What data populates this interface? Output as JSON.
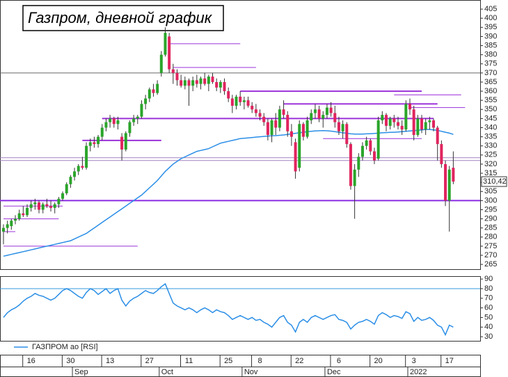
{
  "chart_data": [
    {
      "type": "candlestick",
      "title": "Газпром, дневной график",
      "categories": [
        null,
        null,
        null,
        null,
        null,
        null,
        null,
        "16",
        null,
        null,
        null,
        null,
        null,
        null,
        null,
        null,
        null,
        "30",
        null,
        null,
        null,
        null,
        null,
        null,
        null,
        null,
        null,
        "13",
        null,
        null,
        null,
        null,
        null,
        null,
        null,
        null,
        null,
        "27",
        null,
        null,
        null,
        null,
        null,
        null,
        null,
        null,
        null,
        "11",
        null,
        null,
        null,
        null,
        null,
        null,
        null,
        null,
        null,
        "25",
        null,
        null,
        null,
        null,
        null,
        null,
        null,
        "8",
        null,
        null,
        null,
        null,
        null,
        null,
        null,
        null,
        null,
        "22",
        null,
        null,
        null,
        null,
        null,
        null,
        null,
        null,
        null,
        "6",
        null,
        null,
        null,
        null,
        null,
        null,
        null,
        null,
        null,
        "20",
        null,
        null,
        null,
        null,
        null,
        null,
        null,
        null,
        "3",
        null,
        null,
        null,
        null,
        null,
        null,
        null,
        null,
        "17",
        null
      ],
      "month_categories": [
        null,
        null,
        null,
        null,
        null,
        null,
        null,
        null,
        null,
        null,
        null,
        null,
        null,
        null,
        null,
        null,
        null,
        null,
        "Sep",
        null,
        null,
        null,
        null,
        null,
        null,
        null,
        null,
        null,
        null,
        null,
        null,
        null,
        null,
        null,
        null,
        null,
        null,
        null,
        null,
        null,
        "Oct",
        null,
        null,
        null,
        null,
        null,
        null,
        null,
        null,
        null,
        null,
        null,
        null,
        null,
        null,
        null,
        null,
        null,
        null,
        null,
        null,
        "Nov",
        null,
        null,
        null,
        null,
        null,
        null,
        null,
        null,
        null,
        null,
        null,
        null,
        null,
        null,
        null,
        null,
        null,
        null,
        null,
        null,
        "Dec",
        null,
        null,
        null,
        null,
        null,
        null,
        null,
        null,
        null,
        null,
        null,
        null,
        null,
        null,
        null,
        null,
        null,
        null,
        null,
        null,
        "2022",
        null,
        null,
        null,
        null,
        null,
        null,
        null,
        null,
        null,
        null,
        null
      ],
      "ohlc": [
        [
          283,
          287,
          276,
          285
        ],
        [
          285,
          289,
          282,
          287
        ],
        [
          286,
          290,
          284,
          289
        ],
        [
          289,
          292,
          287,
          290
        ],
        [
          290,
          295,
          289,
          293
        ],
        [
          293,
          297,
          291,
          292
        ],
        [
          292,
          298,
          291,
          296
        ],
        [
          296,
          300,
          294,
          298
        ],
        [
          298,
          301,
          295,
          299
        ],
        [
          299,
          300,
          293,
          295
        ],
        [
          295,
          299,
          293,
          298
        ],
        [
          298,
          301,
          296,
          297
        ],
        [
          297,
          300,
          294,
          296
        ],
        [
          296,
          299,
          293,
          298
        ],
        [
          298,
          302,
          296,
          301
        ],
        [
          301,
          305,
          300,
          304
        ],
        [
          304,
          310,
          303,
          309
        ],
        [
          309,
          314,
          307,
          313
        ],
        [
          313,
          318,
          311,
          316
        ],
        [
          316,
          320,
          314,
          319
        ],
        [
          319,
          324,
          317,
          318
        ],
        [
          318,
          332,
          317,
          330
        ],
        [
          330,
          334,
          327,
          332
        ],
        [
          332,
          335,
          329,
          331
        ],
        [
          331,
          336,
          329,
          335
        ],
        [
          335,
          342,
          333,
          340
        ],
        [
          340,
          345,
          338,
          343
        ],
        [
          343,
          347,
          340,
          345
        ],
        [
          345,
          346,
          340,
          342
        ],
        [
          342,
          346,
          339,
          344
        ],
        [
          335,
          337,
          322,
          328
        ],
        [
          328,
          338,
          327,
          337
        ],
        [
          337,
          344,
          335,
          343
        ],
        [
          343,
          347,
          341,
          345
        ],
        [
          345,
          347,
          342,
          346
        ],
        [
          346,
          355,
          345,
          353
        ],
        [
          353,
          358,
          350,
          356
        ],
        [
          356,
          362,
          354,
          361
        ],
        [
          361,
          364,
          357,
          359
        ],
        [
          359,
          366,
          358,
          364
        ],
        [
          370,
          382,
          368,
          380
        ],
        [
          380,
          395,
          379,
          392
        ],
        [
          390,
          392,
          370,
          372
        ],
        [
          372,
          375,
          364,
          370
        ],
        [
          370,
          372,
          363,
          366
        ],
        [
          366,
          369,
          362,
          363
        ],
        [
          363,
          368,
          361,
          366
        ],
        [
          366,
          367,
          352,
          363
        ],
        [
          363,
          368,
          360,
          366
        ],
        [
          366,
          369,
          362,
          364
        ],
        [
          364,
          368,
          361,
          367
        ],
        [
          367,
          370,
          363,
          364
        ],
        [
          364,
          369,
          360,
          368
        ],
        [
          368,
          370,
          364,
          365
        ],
        [
          365,
          367,
          360,
          362
        ],
        [
          362,
          366,
          359,
          365
        ],
        [
          365,
          367,
          358,
          360
        ],
        [
          360,
          362,
          354,
          356
        ],
        [
          356,
          358,
          348,
          352
        ],
        [
          352,
          358,
          350,
          357
        ],
        [
          357,
          360,
          352,
          354
        ],
        [
          354,
          357,
          350,
          355
        ],
        [
          355,
          357,
          351,
          352
        ],
        [
          352,
          354,
          348,
          350
        ],
        [
          350,
          353,
          346,
          348
        ],
        [
          348,
          350,
          344,
          346
        ],
        [
          346,
          348,
          341,
          343
        ],
        [
          343,
          345,
          333,
          336
        ],
        [
          336,
          345,
          332,
          344
        ],
        [
          344,
          348,
          336,
          340
        ],
        [
          340,
          352,
          338,
          350
        ],
        [
          350,
          355,
          345,
          347
        ],
        [
          347,
          349,
          335,
          338
        ],
        [
          338,
          342,
          330,
          335
        ],
        [
          332,
          334,
          312,
          316
        ],
        [
          318,
          344,
          316,
          342
        ],
        [
          342,
          343,
          333,
          335
        ],
        [
          335,
          346,
          334,
          344
        ],
        [
          344,
          350,
          342,
          348
        ],
        [
          348,
          353,
          345,
          350
        ],
        [
          350,
          352,
          343,
          345
        ],
        [
          345,
          349,
          340,
          347
        ],
        [
          347,
          353,
          345,
          351
        ],
        [
          351,
          354,
          346,
          348
        ],
        [
          348,
          352,
          340,
          343
        ],
        [
          343,
          346,
          336,
          338
        ],
        [
          338,
          344,
          334,
          342
        ],
        [
          342,
          343,
          329,
          331
        ],
        [
          331,
          332,
          306,
          308
        ],
        [
          308,
          320,
          290,
          317
        ],
        [
          317,
          326,
          313,
          324
        ],
        [
          324,
          332,
          322,
          330
        ],
        [
          330,
          335,
          328,
          333
        ],
        [
          333,
          334,
          325,
          327
        ],
        [
          327,
          329,
          320,
          322
        ],
        [
          323,
          346,
          322,
          344
        ],
        [
          344,
          349,
          342,
          347
        ],
        [
          347,
          348,
          338,
          341
        ],
        [
          341,
          346,
          339,
          345
        ],
        [
          345,
          347,
          340,
          343
        ],
        [
          343,
          346,
          339,
          341
        ],
        [
          341,
          344,
          336,
          339
        ],
        [
          339,
          355,
          338,
          353
        ],
        [
          353,
          356,
          347,
          350
        ],
        [
          350,
          352,
          333,
          336
        ],
        [
          336,
          347,
          335,
          345
        ],
        [
          345,
          347,
          337,
          339
        ],
        [
          339,
          345,
          336,
          343
        ],
        [
          343,
          346,
          339,
          344
        ],
        [
          344,
          345,
          338,
          340
        ],
        [
          340,
          341,
          322,
          331
        ],
        [
          331,
          333,
          318,
          320
        ],
        [
          320,
          322,
          297,
          300
        ],
        [
          300,
          319,
          283,
          317
        ],
        [
          318,
          327,
          309,
          310.42
        ]
      ],
      "up_color": "#2aa52a",
      "down_color": "#e0245e",
      "series": [
        {
          "color": "#2a8ee6",
          "values": [
            269.5,
            270,
            270.5,
            271,
            271.5,
            272,
            272.5,
            273,
            273.5,
            274,
            274.5,
            275,
            275.5,
            276,
            276.5,
            277,
            277.5,
            278,
            279,
            280,
            281,
            282,
            283.5,
            285,
            286.5,
            288,
            289.5,
            291,
            292.5,
            294,
            295.5,
            297,
            298.5,
            300,
            301.5,
            303,
            305,
            307,
            309,
            311,
            313.5,
            316,
            318,
            320,
            321.5,
            323,
            324,
            325,
            326,
            327,
            327.5,
            328,
            328.5,
            329.5,
            330.5,
            331.5,
            332,
            332.5,
            333,
            333.5,
            334,
            334.2,
            334.4,
            334.6,
            334.8,
            335,
            335.2,
            335.4,
            335.5,
            335.6,
            335.8,
            336,
            336.3,
            336.6,
            336.9,
            337.2,
            337.5,
            337.8,
            338,
            338.2,
            338.3,
            338.4,
            338.3,
            338.1,
            337.8,
            337.5,
            337.2,
            336.9,
            336.6,
            336.5,
            336.5,
            336.5,
            336.6,
            336.7,
            336.8,
            337,
            337.2,
            337.3,
            337.4,
            337.5,
            337.6,
            337.8,
            338,
            338.2,
            338.4,
            338.6,
            338.8,
            339,
            339,
            338.8,
            338.5,
            338,
            337.5,
            337,
            336.3
          ]
        }
      ],
      "levels": [
        {
          "value": 370,
          "color": "#666666",
          "width": 1
        },
        {
          "value": 300,
          "color": "#8a2be2",
          "width": 2
        },
        {
          "value": 322,
          "color": "#a080c0",
          "width": 1
        },
        {
          "value": 323.5,
          "color": "#a080c0",
          "width": 1
        },
        {
          "value": 386,
          "from": 42,
          "to": 60,
          "color": "#9b30d9",
          "width": 1
        },
        {
          "value": 373,
          "from": 43,
          "to": 64,
          "color": "#9b30d9",
          "width": 1
        },
        {
          "value": 360,
          "from": 60,
          "to": 106,
          "color": "#9b30d9",
          "width": 2
        },
        {
          "value": 358,
          "from": 99,
          "to": 116,
          "color": "#9b30d9",
          "width": 1
        },
        {
          "value": 353,
          "from": 71,
          "to": 110,
          "color": "#9b30d9",
          "width": 2
        },
        {
          "value": 351,
          "from": 103,
          "to": 117,
          "color": "#9b30d9",
          "width": 1
        },
        {
          "value": 345,
          "from": 25,
          "to": 109,
          "color": "#9b30d9",
          "width": 2
        },
        {
          "value": 333,
          "from": 20,
          "to": 40,
          "color": "#9b30d9",
          "width": 2
        },
        {
          "value": 334,
          "from": 81,
          "to": 106,
          "color": "#9b30d9",
          "width": 1
        },
        {
          "value": 275,
          "from": 0,
          "to": 34,
          "color": "#9b30d9",
          "width": 1
        },
        {
          "value": 283,
          "from": 0,
          "to": 3,
          "color": "#9b30d9",
          "width": 1
        },
        {
          "value": 290,
          "from": 0,
          "to": 14,
          "color": "#9b30d9",
          "width": 1
        },
        {
          "value": 297,
          "from": 0,
          "to": 15,
          "color": "#9b30d9",
          "width": 1
        }
      ],
      "last_price": {
        "value": 310.42,
        "label": "310,42"
      },
      "ylim": [
        262,
        410
      ],
      "yticks": [
        265,
        270,
        275,
        280,
        285,
        290,
        295,
        300,
        305,
        310,
        315,
        320,
        325,
        330,
        335,
        340,
        345,
        350,
        355,
        360,
        365,
        370,
        375,
        380,
        385,
        390,
        395,
        400,
        405
      ]
    },
    {
      "type": "line",
      "series": [
        {
          "name": "ГАЗПРОМ ао [RSI]",
          "color": "#2a8ee6",
          "values": [
            50,
            55,
            58,
            60,
            63,
            67,
            70,
            72,
            75,
            73,
            72,
            70,
            68,
            70,
            74,
            78,
            80,
            78,
            75,
            72,
            70,
            76,
            80,
            78,
            74,
            77,
            80,
            75,
            78,
            80,
            68,
            62,
            67,
            70,
            72,
            75,
            78,
            76,
            75,
            78,
            82,
            85,
            75,
            65,
            62,
            60,
            58,
            60,
            58,
            55,
            58,
            60,
            58,
            55,
            58,
            56,
            55,
            52,
            48,
            50,
            52,
            50,
            48,
            50,
            47,
            48,
            45,
            43,
            40,
            45,
            50,
            52,
            45,
            42,
            35,
            45,
            48,
            45,
            50,
            52,
            50,
            48,
            50,
            52,
            53,
            48,
            47,
            45,
            38,
            42,
            45,
            46,
            48,
            46,
            43,
            52,
            55,
            53,
            50,
            52,
            51,
            49,
            56,
            54,
            46,
            50,
            47,
            48,
            50,
            47,
            42,
            40,
            32,
            42,
            40
          ]
        }
      ],
      "levels": [
        {
          "value": 80,
          "color": "#3399dd",
          "width": 1
        }
      ],
      "ylim": [
        25,
        93
      ],
      "yticks": [
        30,
        40,
        50,
        60,
        70,
        80,
        90
      ]
    }
  ]
}
